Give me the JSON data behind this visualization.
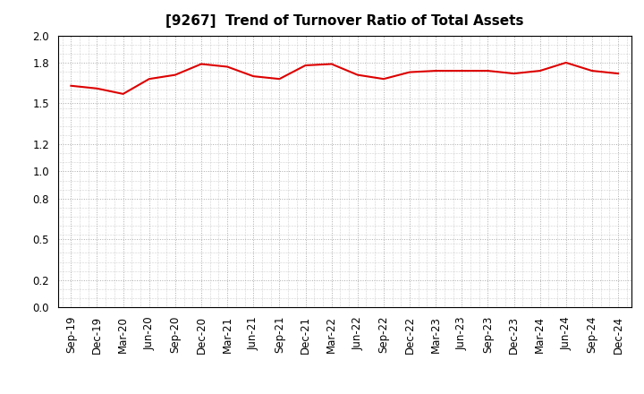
{
  "title": "[9267]  Trend of Turnover Ratio of Total Assets",
  "x_labels": [
    "Sep-19",
    "Dec-19",
    "Mar-20",
    "Jun-20",
    "Sep-20",
    "Dec-20",
    "Mar-21",
    "Jun-21",
    "Sep-21",
    "Dec-21",
    "Mar-22",
    "Jun-22",
    "Sep-22",
    "Dec-22",
    "Mar-23",
    "Jun-23",
    "Sep-23",
    "Dec-23",
    "Mar-24",
    "Jun-24",
    "Sep-24",
    "Dec-24"
  ],
  "values": [
    1.63,
    1.61,
    1.57,
    1.68,
    1.71,
    1.79,
    1.77,
    1.7,
    1.68,
    1.78,
    1.79,
    1.71,
    1.68,
    1.73,
    1.74,
    1.74,
    1.74,
    1.72,
    1.74,
    1.8,
    1.74,
    1.72
  ],
  "line_color": "#dd0000",
  "line_width": 1.5,
  "ylim": [
    0.0,
    2.0
  ],
  "yticks": [
    0.0,
    0.2,
    0.5,
    0.8,
    1.0,
    1.2,
    1.5,
    1.8,
    2.0
  ],
  "background_color": "#ffffff",
  "grid_color": "#aaaaaa",
  "title_fontsize": 11,
  "tick_fontsize": 8.5
}
